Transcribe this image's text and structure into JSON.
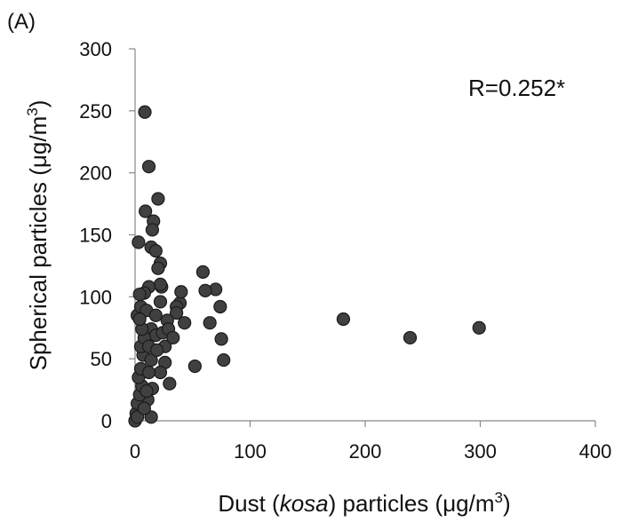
{
  "panel_label": "(A)",
  "chart_data": {
    "type": "scatter",
    "annotation": "R=0.252*",
    "x_label_parts": [
      "Dust (",
      "kosa",
      ") particles  (μg/m",
      "3",
      ")"
    ],
    "y_label_parts": [
      "Spherical particles (μg/m",
      "3",
      ")"
    ],
    "color": "#404040",
    "xlim": [
      0,
      400
    ],
    "xticks": [
      0,
      100,
      200,
      300,
      400
    ],
    "ylim": [
      0,
      300
    ],
    "yticks": [
      0,
      50,
      100,
      150,
      200,
      250,
      300
    ],
    "x": [
      8.5,
      12,
      9,
      20,
      3,
      14,
      16,
      15,
      18,
      22,
      20,
      59,
      70,
      61,
      74,
      75,
      77,
      181,
      239,
      299,
      52,
      30,
      65,
      43,
      39,
      36,
      40,
      36,
      28,
      26,
      26,
      23,
      22,
      12,
      8,
      4,
      2,
      5,
      10,
      14,
      18,
      14,
      22,
      15,
      11,
      0,
      1,
      2,
      4,
      6,
      3,
      5,
      7,
      5,
      8,
      6,
      4,
      2,
      8,
      10,
      12,
      14,
      12,
      19,
      24,
      18,
      22,
      29,
      33
    ],
    "values": [
      249,
      205,
      169,
      179,
      144,
      140,
      161,
      154,
      137,
      127,
      123,
      120,
      106,
      105,
      92,
      66,
      49,
      82,
      67,
      75,
      44,
      30,
      79,
      79,
      95,
      92,
      104,
      87,
      81,
      60,
      47,
      108,
      110,
      108,
      103,
      102,
      85,
      92,
      89,
      74,
      69,
      3,
      39,
      26,
      17,
      0,
      6,
      14,
      21,
      28,
      35,
      42,
      53,
      60,
      67,
      74,
      82,
      3,
      10,
      24,
      39,
      49,
      60,
      57,
      71,
      85,
      96,
      74,
      67
    ]
  }
}
